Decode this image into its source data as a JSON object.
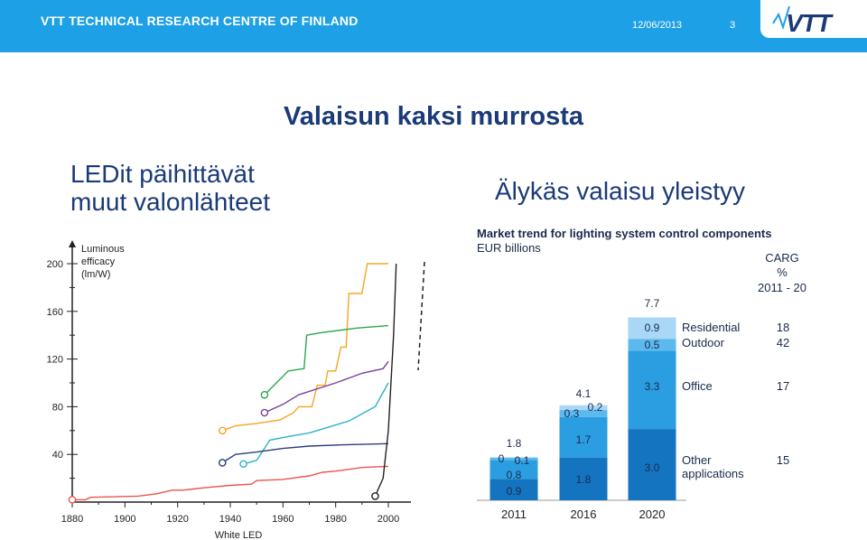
{
  "header": {
    "org": "VTT TECHNICAL RESEARCH CENTRE OF FINLAND",
    "date": "12/06/2013",
    "page_number": "3",
    "logo_text": "VTT",
    "bg_color": "#1ea0e6"
  },
  "slide": {
    "title": "Valaisun kaksi murrosta",
    "left_subtitle_line1": "LEDit päihittävät",
    "left_subtitle_line2": "muut valonlähteet",
    "right_subtitle": "Älykäs valaisu yleistyy"
  },
  "chart_data": [
    {
      "type": "line",
      "ylabel": "Luminous efficacy (lm/W)",
      "xlabel": "",
      "xlim": [
        1880,
        2000
      ],
      "ylim": [
        0,
        200
      ],
      "x_ticks": [
        "1880",
        "1900",
        "1920",
        "1940",
        "1960",
        "1980",
        "2000"
      ],
      "y_ticks": [
        "40",
        "80",
        "120",
        "160",
        "200"
      ],
      "annotation": "White LED",
      "series": [
        {
          "color": "#e8564d",
          "points": [
            [
              1880,
              2
            ],
            [
              1885,
              2
            ],
            [
              1887,
              4
            ],
            [
              1905,
              5
            ],
            [
              1912,
              7
            ],
            [
              1918,
              10
            ],
            [
              1922,
              10
            ],
            [
              1926,
              11
            ],
            [
              1930,
              12
            ],
            [
              1940,
              14
            ],
            [
              1948,
              15
            ],
            [
              1950,
              18
            ],
            [
              1960,
              19
            ],
            [
              1970,
              22
            ],
            [
              1975,
              25
            ],
            [
              1980,
              26
            ],
            [
              1990,
              29
            ],
            [
              2000,
              30
            ]
          ]
        },
        {
          "color": "#f5a623",
          "points": [
            [
              1937,
              60
            ],
            [
              1942,
              64
            ],
            [
              1950,
              66
            ],
            [
              1959,
              69
            ],
            [
              1964,
              75
            ],
            [
              1966,
              80
            ],
            [
              1971,
              80
            ],
            [
              1973,
              98
            ],
            [
              1976,
              98
            ],
            [
              1977,
              110
            ],
            [
              1980,
              110
            ],
            [
              1982,
              130
            ],
            [
              1984,
              130
            ],
            [
              1985,
              175
            ],
            [
              1990,
              175
            ],
            [
              1992,
              200
            ],
            [
              2000,
              200
            ]
          ]
        },
        {
          "color": "#2aa84b",
          "points": [
            [
              1953,
              90
            ],
            [
              1962,
              110
            ],
            [
              1968,
              112
            ],
            [
              1969,
              140
            ],
            [
              1974,
              142
            ],
            [
              1988,
              146
            ],
            [
              2000,
              148
            ]
          ]
        },
        {
          "color": "#7b3f9e",
          "points": [
            [
              1953,
              75
            ],
            [
              1960,
              82
            ],
            [
              1966,
              90
            ],
            [
              1980,
              100
            ],
            [
              1990,
              108
            ],
            [
              1998,
              112
            ],
            [
              2000,
              118
            ]
          ]
        },
        {
          "color": "#2db3c7",
          "points": [
            [
              1945,
              32
            ],
            [
              1950,
              35
            ],
            [
              1955,
              52
            ],
            [
              1962,
              55
            ],
            [
              1970,
              58
            ],
            [
              1985,
              68
            ],
            [
              1995,
              80
            ],
            [
              2000,
              100
            ]
          ]
        },
        {
          "color": "#2b3f7f",
          "points": [
            [
              1937,
              33
            ],
            [
              1942,
              40
            ],
            [
              1950,
              42
            ],
            [
              1960,
              45
            ],
            [
              1970,
              47
            ],
            [
              1983,
              48
            ],
            [
              2000,
              49
            ]
          ]
        },
        {
          "color": "#222222",
          "points": [
            [
              1995,
              5
            ],
            [
              1998,
              20
            ],
            [
              2000,
              60
            ],
            [
              2001,
              100
            ],
            [
              2002,
              140
            ],
            [
              2003,
              200
            ]
          ]
        }
      ]
    },
    {
      "type": "bar",
      "title": "Market trend for lighting system control components",
      "subtitle": "EUR billions",
      "categories": [
        "2011",
        "2016",
        "2020"
      ],
      "totals": [
        "1.8",
        "4.1",
        "7.7"
      ],
      "series": [
        {
          "name": "Other applications",
          "values": [
            0.9,
            1.8,
            3.0
          ],
          "color": "#1574c0"
        },
        {
          "name": "Office",
          "values": [
            0.8,
            1.7,
            3.3
          ],
          "color": "#2a9ee0"
        },
        {
          "name": "Outdoor",
          "values": [
            0.1,
            0.3,
            0.5
          ],
          "color": "#5cb9ee"
        },
        {
          "name": "Residential",
          "values": [
            0,
            0.2,
            0.9
          ],
          "color": "#a8d8f6"
        }
      ],
      "value_labels": [
        [
          "0.9",
          "0.8",
          "0.1",
          "0"
        ],
        [
          "1.8",
          "1.7",
          "0.3",
          "0.2"
        ],
        [
          "3.0",
          "3.3",
          "0.5",
          "0.9"
        ]
      ],
      "legend_labels": [
        "Residential",
        "Outdoor",
        "Office",
        "Other",
        "applications"
      ],
      "carg_header": [
        "CARG",
        "%",
        "2011 - 20"
      ],
      "carg_values": [
        "18",
        "42",
        "17",
        "15"
      ]
    }
  ]
}
